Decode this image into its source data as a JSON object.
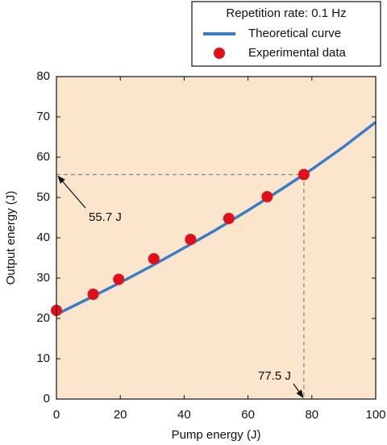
{
  "chart_data": {
    "type": "line",
    "xlabel": "Pump energy (J)",
    "ylabel": "Output energy (J)",
    "legend_title": "Repetition rate: 0.1 Hz",
    "legend_position": "top-right",
    "background": "#fbe5cc",
    "series": [
      {
        "name": "Theoretical curve",
        "color": "#3a7dc6",
        "mode": "line",
        "x": [
          0,
          10,
          20,
          30,
          40,
          50,
          60,
          70,
          80,
          90,
          100
        ],
        "values": [
          21,
          24.9,
          28.9,
          33.1,
          37.5,
          42,
          46.8,
          51.8,
          57,
          62.6,
          68.7
        ]
      },
      {
        "name": "Experimental data",
        "color": "#e0101a",
        "mode": "marker",
        "x": [
          0,
          11.5,
          19.5,
          30.5,
          42,
          54,
          66,
          77.5
        ],
        "values": [
          22,
          26,
          29.7,
          34.8,
          39.6,
          44.8,
          50.2,
          55.7
        ]
      }
    ],
    "reference": {
      "x": 77.5,
      "y": 55.7,
      "x_label": "77.5 J",
      "y_label": "55.7 J"
    },
    "xlim": [
      0,
      100
    ],
    "xticks": [
      0,
      20,
      40,
      60,
      80,
      100
    ],
    "ylim": [
      0,
      80
    ],
    "yticks": [
      0,
      10,
      20,
      30,
      40,
      50,
      60,
      70,
      80
    ]
  }
}
